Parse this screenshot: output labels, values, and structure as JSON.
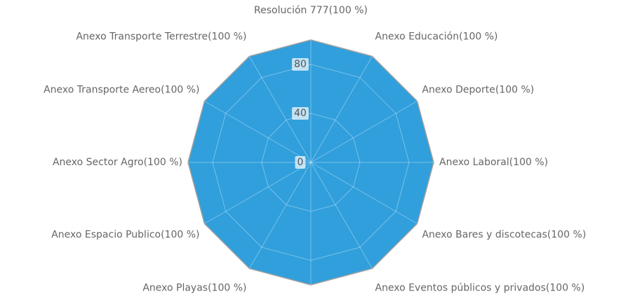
{
  "chart_data": {
    "type": "radar",
    "categories": [
      "Resolución 777",
      "Anexo Educación",
      "Anexo Deporte",
      "Anexo Laboral",
      "Anexo Bares y discotecas",
      "Anexo Eventos públicos y privados",
      null,
      "Anexo Playas",
      "Anexo Espacio Publico",
      "Anexo Sector Agro",
      "Anexo Transporte Aereo",
      "Anexo Transporte Terrestre"
    ],
    "values": [
      100,
      100,
      100,
      100,
      100,
      100,
      100,
      100,
      100,
      100,
      100,
      100
    ],
    "value_labels": [
      "(100 %)",
      "(100 %)",
      "(100 %)",
      "(100 %)",
      "(100 %)",
      "(100 %)",
      null,
      "(100 %)",
      "(100 %)",
      "(100 %)",
      "(100 %)",
      "(100 %)"
    ],
    "color": "#309fdc",
    "ylim": [
      0,
      100
    ],
    "yticks": [
      0,
      40,
      80
    ],
    "grid": true
  }
}
